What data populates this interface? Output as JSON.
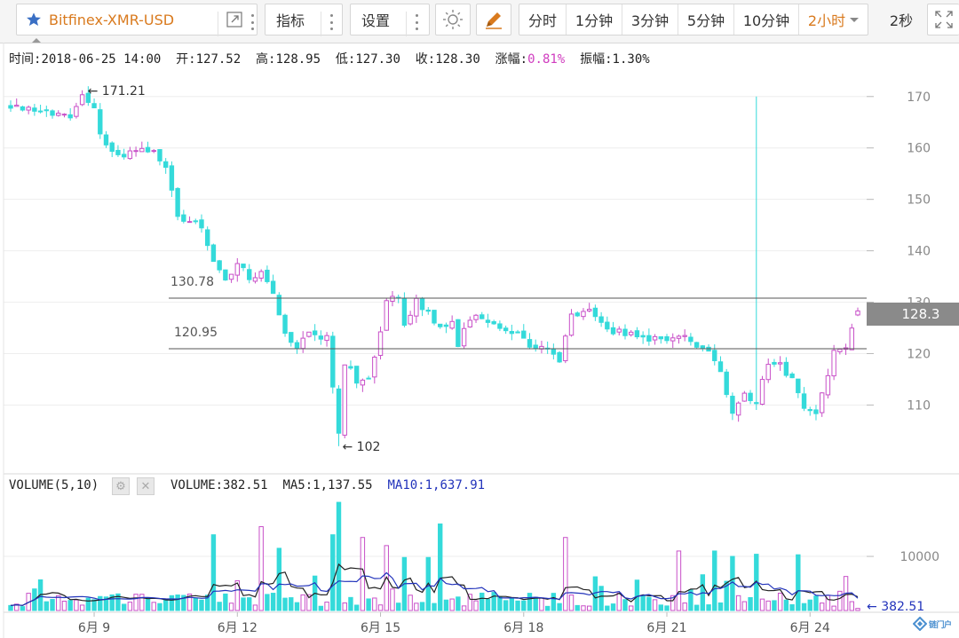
{
  "toolbar": {
    "symbol": "Bitfinex-XMR-USD",
    "indicator_label": "指标",
    "settings_label": "设置",
    "intervals": [
      "分时",
      "1分钟",
      "3分钟",
      "5分钟",
      "10分钟"
    ],
    "selected_interval": "2小时",
    "refresh_label": "2秒"
  },
  "info": {
    "time_label": "时间:",
    "time_value": "2018-06-25 14:00",
    "open_label": "开:",
    "open_value": "127.52",
    "high_label": "高:",
    "high_value": "128.95",
    "low_label": "低:",
    "low_value": "127.30",
    "close_label": "收:",
    "close_value": "128.30",
    "change_label": "涨幅:",
    "change_value": "0.81%",
    "amplitude_label": "振幅:",
    "amplitude_value": "1.30%"
  },
  "volume_info": {
    "name": "VOLUME(5,10)",
    "volume_label": "VOLUME:",
    "volume_value": "382.51",
    "ma5_label": "MA5:",
    "ma5_value": "1,137.55",
    "ma10_label": "MA10:",
    "ma10_value": "1,637.91"
  },
  "colors": {
    "up": "#c850c8",
    "down": "#34dada",
    "ma5": "#222222",
    "ma10": "#2233bb",
    "accent": "#d97a1e",
    "star": "#3a6fc4",
    "pct": "#d03cbf"
  },
  "chart_data": [
    {
      "type": "candlestick",
      "x_ticks": [
        "6月 9",
        "6月 12",
        "6月 15",
        "6月 18",
        "6月 21",
        "6月 24"
      ],
      "y_ticks": [
        110,
        120,
        130,
        140,
        150,
        160,
        170
      ],
      "ylim": [
        98,
        176
      ],
      "last_price": "128.3",
      "annotations": [
        {
          "label": "← 171.21",
          "value": 171.21
        },
        {
          "label": "← 102",
          "value": 102
        },
        {
          "label": "130.78",
          "value": 130.78
        },
        {
          "label": "120.95",
          "value": 120.95
        }
      ],
      "hlines": [
        130.78,
        120.95
      ],
      "close_path": [
        [
          0,
          168
        ],
        [
          6,
          167
        ],
        [
          10,
          166
        ],
        [
          12,
          170
        ],
        [
          14,
          168
        ],
        [
          15,
          162
        ],
        [
          17,
          159
        ],
        [
          19,
          159
        ],
        [
          21,
          160
        ],
        [
          24,
          159
        ],
        [
          26,
          157
        ],
        [
          28,
          147
        ],
        [
          30,
          146
        ],
        [
          32,
          145
        ],
        [
          34,
          138
        ],
        [
          36,
          134
        ],
        [
          38,
          137
        ],
        [
          40,
          135
        ],
        [
          42,
          136
        ],
        [
          44,
          131
        ],
        [
          46,
          124
        ],
        [
          48,
          121
        ],
        [
          50,
          124
        ],
        [
          53,
          123
        ],
        [
          55,
          105
        ],
        [
          56,
          118
        ],
        [
          57,
          117
        ],
        [
          58,
          115
        ],
        [
          60,
          115
        ],
        [
          61,
          119
        ],
        [
          63,
          131
        ],
        [
          64,
          131
        ],
        [
          65,
          131
        ],
        [
          66,
          126
        ],
        [
          68,
          130
        ],
        [
          70,
          128
        ],
        [
          72,
          125
        ],
        [
          74,
          127
        ],
        [
          75,
          122
        ],
        [
          77,
          127
        ],
        [
          79,
          127
        ],
        [
          82,
          125
        ],
        [
          84,
          124
        ],
        [
          87,
          122
        ],
        [
          90,
          121
        ],
        [
          92,
          119
        ],
        [
          94,
          127
        ],
        [
          97,
          128
        ],
        [
          99,
          126
        ],
        [
          101,
          124
        ],
        [
          104,
          124
        ],
        [
          107,
          123
        ],
        [
          110,
          122
        ],
        [
          113,
          123
        ],
        [
          115,
          121
        ],
        [
          117,
          121
        ],
        [
          119,
          117
        ],
        [
          120,
          112
        ],
        [
          121,
          108
        ],
        [
          123,
          112
        ],
        [
          125,
          111
        ],
        [
          127,
          118
        ],
        [
          129,
          118
        ],
        [
          131,
          115
        ],
        [
          133,
          110
        ],
        [
          135,
          109
        ],
        [
          137,
          116
        ],
        [
          138,
          120
        ],
        [
          140,
          121
        ],
        [
          142,
          128
        ]
      ],
      "n_bars": 143,
      "spike": {
        "bar": 125,
        "high": 170
      },
      "last_bar": {
        "open": 127.52,
        "high": 128.95,
        "low": 127.3,
        "close": 128.3
      }
    },
    {
      "type": "bar",
      "name": "VOLUME(5,10)",
      "y_ticks": [
        10000
      ],
      "ylim": [
        0,
        21000
      ],
      "last_volume": "382.51",
      "series": [
        {
          "name": "MA5"
        },
        {
          "name": "MA10"
        }
      ]
    }
  ],
  "watermark": "链门户"
}
